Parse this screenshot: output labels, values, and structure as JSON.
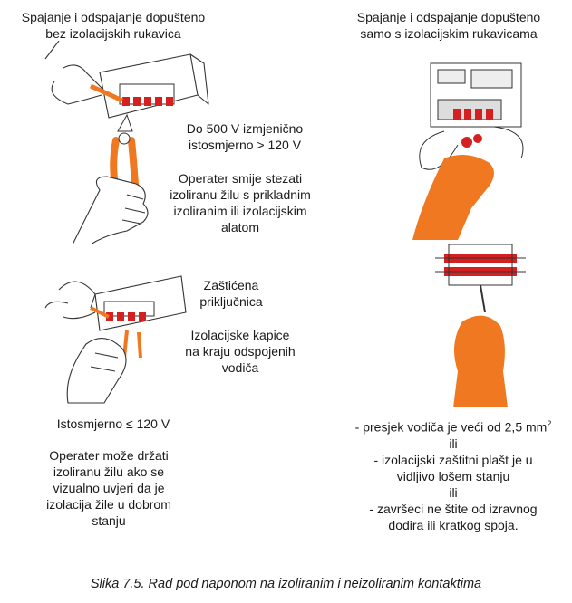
{
  "top_left_heading": [
    "Spajanje i odspajanje dopušteno",
    "bez izolacijskih rukavica"
  ],
  "top_right_heading": [
    "Spajanje i odspajanje dopušteno",
    "samo s izolacijskim rukavicama"
  ],
  "voltage_ac_dc": [
    "Do 500 V izmjenično",
    "istosmjerno > 120 V"
  ],
  "operator_tool_note": [
    "Operater smije stezati",
    "izoliranu žilu s prikladnim",
    "izoliranim ili izolacijskim",
    "alatom"
  ],
  "protected_terminal": [
    "Zaštićena",
    "priključnica"
  ],
  "insulating_caps": [
    "Izolacijske kapice",
    "na kraju odspojenih",
    "vodiča"
  ],
  "voltage_dc_low": "Istosmjerno ≤ 120 V",
  "operator_hold_note": [
    "Operater može držati",
    "izoliranu žilu ako se",
    "vizualno uvjeri da je",
    "izolacija žile u dobrom",
    "stanju"
  ],
  "conditions": {
    "line1": "- presjek vodiča je veći od 2,5 mm",
    "line1_sup": "2",
    "or1": "ili",
    "line2a": "- izolacijski zaštitni plašt je u",
    "line2b": "vidljivo lošem stanju",
    "or2": "ili",
    "line3a": "- završeci ne štite od izravnog",
    "line3b": "dodira ili kratkog spoja."
  },
  "caption": "Slika 7.5. Rad pod naponom na izoliranim i neizoliranim kontaktima",
  "colors": {
    "orange": "#f07820",
    "red": "#d42020",
    "line": "#333333"
  }
}
